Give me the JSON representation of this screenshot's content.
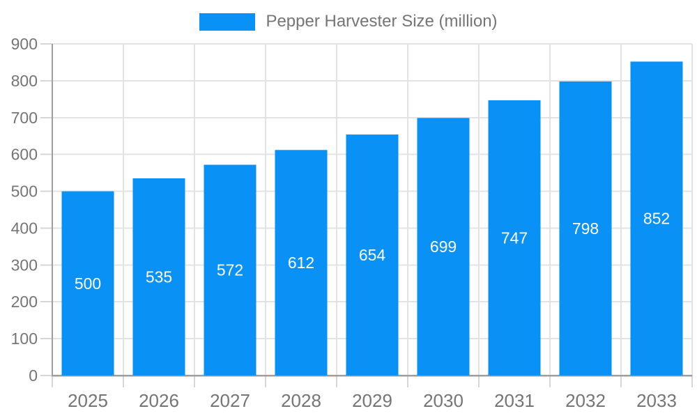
{
  "chart_data": {
    "type": "bar",
    "categories": [
      "2025",
      "2026",
      "2027",
      "2028",
      "2029",
      "2030",
      "2031",
      "2032",
      "2033"
    ],
    "series": [
      {
        "name": "Pepper Harvester Size (million)",
        "values": [
          500,
          535,
          572,
          612,
          654,
          699,
          747,
          798,
          852
        ]
      }
    ],
    "data_labels": [
      500,
      535,
      572,
      612,
      654,
      699,
      747,
      798,
      852
    ],
    "ylim": [
      0,
      900
    ],
    "yticks": [
      0,
      100,
      200,
      300,
      400,
      500,
      600,
      700,
      800,
      900
    ],
    "grid": true,
    "legend_position": "top"
  },
  "colors": {
    "bar": "#0991F5",
    "value_label": "#FFFFFF",
    "axis": "#9E9E9E",
    "gridline": "#E3E3E3",
    "tick": "#D6D6D6",
    "tick_label": "#757575",
    "legend_text": "#757575",
    "background": "#FFFFFF"
  }
}
